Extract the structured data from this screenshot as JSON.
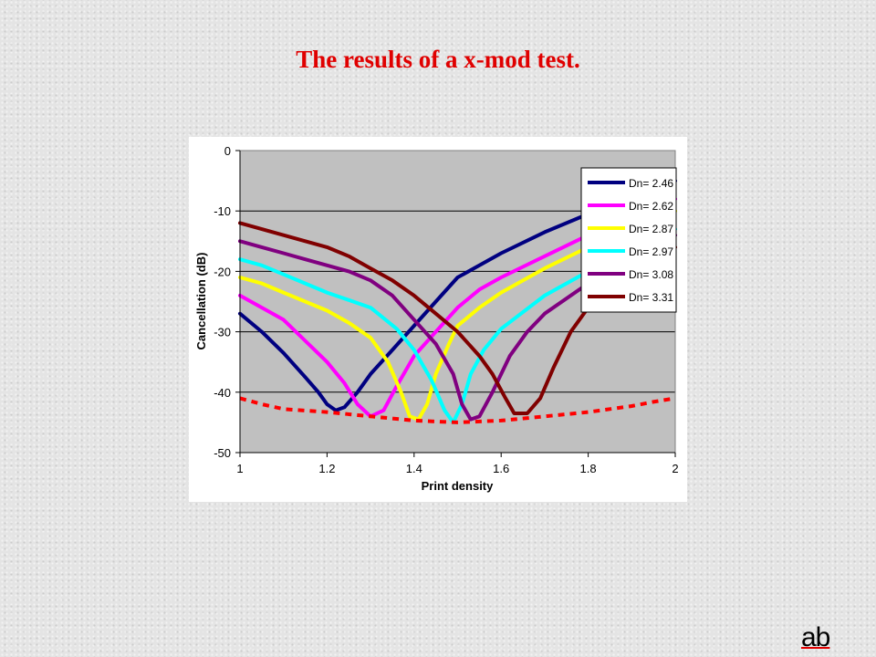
{
  "slide": {
    "title": "The results of a x-mod test.",
    "logo_text": "ab"
  },
  "chart_data": {
    "type": "line",
    "title": "",
    "xlabel": "Print density",
    "ylabel": "Cancellation (dB)",
    "xlim": [
      1,
      2
    ],
    "ylim": [
      -50,
      0
    ],
    "x_ticks": [
      1,
      1.2,
      1.4,
      1.6,
      1.8,
      2
    ],
    "x_tick_labels": [
      "1",
      "1.2",
      "1.4",
      "1.6",
      "1.8",
      "2"
    ],
    "y_ticks": [
      0,
      -10,
      -20,
      -30,
      -40,
      -50
    ],
    "y_tick_labels": [
      "0",
      "-10",
      "-20",
      "-30",
      "-40",
      "-50"
    ],
    "grid": "horizontal",
    "plot_background": "#c0c0c0",
    "legend_position": "top-right",
    "series": [
      {
        "name": "Dn= 2.46",
        "color": "#000080",
        "points": [
          [
            1,
            -27
          ],
          [
            1.05,
            -30
          ],
          [
            1.1,
            -33.5
          ],
          [
            1.15,
            -37.5
          ],
          [
            1.18,
            -40
          ],
          [
            1.2,
            -42
          ],
          [
            1.22,
            -43
          ],
          [
            1.24,
            -42.5
          ],
          [
            1.27,
            -40
          ],
          [
            1.3,
            -37
          ],
          [
            1.35,
            -33
          ],
          [
            1.4,
            -29
          ],
          [
            1.45,
            -25
          ],
          [
            1.5,
            -21
          ],
          [
            1.55,
            -19
          ],
          [
            1.6,
            -17
          ],
          [
            1.7,
            -13.5
          ],
          [
            1.8,
            -10.5
          ],
          [
            1.9,
            -7.5
          ],
          [
            2,
            -5
          ]
        ]
      },
      {
        "name": "Dn= 2.62",
        "color": "#ff00ff",
        "points": [
          [
            1,
            -24
          ],
          [
            1.05,
            -26
          ],
          [
            1.1,
            -28
          ],
          [
            1.15,
            -31.5
          ],
          [
            1.2,
            -35
          ],
          [
            1.24,
            -38.5
          ],
          [
            1.27,
            -42
          ],
          [
            1.3,
            -44
          ],
          [
            1.33,
            -43
          ],
          [
            1.36,
            -39
          ],
          [
            1.4,
            -34
          ],
          [
            1.45,
            -30
          ],
          [
            1.5,
            -26
          ],
          [
            1.55,
            -23
          ],
          [
            1.6,
            -21
          ],
          [
            1.7,
            -17.5
          ],
          [
            1.8,
            -14
          ],
          [
            1.9,
            -11
          ],
          [
            2,
            -8
          ]
        ]
      },
      {
        "name": "Dn= 2.87",
        "color": "#ffff00",
        "points": [
          [
            1,
            -21
          ],
          [
            1.05,
            -22
          ],
          [
            1.1,
            -23.5
          ],
          [
            1.15,
            -25
          ],
          [
            1.2,
            -26.5
          ],
          [
            1.25,
            -28.5
          ],
          [
            1.3,
            -31
          ],
          [
            1.34,
            -35
          ],
          [
            1.37,
            -40
          ],
          [
            1.39,
            -44
          ],
          [
            1.41,
            -44.5
          ],
          [
            1.43,
            -42
          ],
          [
            1.45,
            -37
          ],
          [
            1.48,
            -32
          ],
          [
            1.5,
            -29
          ],
          [
            1.55,
            -26
          ],
          [
            1.6,
            -23.5
          ],
          [
            1.7,
            -19.5
          ],
          [
            1.8,
            -16
          ],
          [
            1.9,
            -13
          ],
          [
            2,
            -10
          ]
        ]
      },
      {
        "name": "Dn= 2.97",
        "color": "#00ffff",
        "points": [
          [
            1,
            -18
          ],
          [
            1.05,
            -19
          ],
          [
            1.1,
            -20.5
          ],
          [
            1.15,
            -22
          ],
          [
            1.2,
            -23.5
          ],
          [
            1.3,
            -26
          ],
          [
            1.36,
            -29.5
          ],
          [
            1.4,
            -33
          ],
          [
            1.44,
            -38
          ],
          [
            1.47,
            -43
          ],
          [
            1.49,
            -45
          ],
          [
            1.51,
            -42
          ],
          [
            1.53,
            -37
          ],
          [
            1.56,
            -33
          ],
          [
            1.6,
            -29.5
          ],
          [
            1.7,
            -24
          ],
          [
            1.8,
            -20
          ],
          [
            1.9,
            -16.5
          ],
          [
            2,
            -13
          ]
        ]
      },
      {
        "name": "Dn= 3.08",
        "color": "#800080",
        "points": [
          [
            1,
            -15
          ],
          [
            1.05,
            -16
          ],
          [
            1.1,
            -17
          ],
          [
            1.15,
            -18
          ],
          [
            1.2,
            -19
          ],
          [
            1.25,
            -20
          ],
          [
            1.3,
            -21.5
          ],
          [
            1.35,
            -24
          ],
          [
            1.4,
            -28
          ],
          [
            1.45,
            -32
          ],
          [
            1.49,
            -37
          ],
          [
            1.51,
            -42
          ],
          [
            1.53,
            -44.5
          ],
          [
            1.55,
            -44
          ],
          [
            1.58,
            -40
          ],
          [
            1.62,
            -34
          ],
          [
            1.66,
            -30
          ],
          [
            1.7,
            -27
          ],
          [
            1.8,
            -22
          ],
          [
            1.9,
            -18
          ],
          [
            2,
            -14
          ]
        ]
      },
      {
        "name": "Dn= 3.31",
        "color": "#800000",
        "points": [
          [
            1,
            -12
          ],
          [
            1.05,
            -13
          ],
          [
            1.1,
            -14
          ],
          [
            1.15,
            -15
          ],
          [
            1.2,
            -16
          ],
          [
            1.25,
            -17.5
          ],
          [
            1.3,
            -19.5
          ],
          [
            1.35,
            -21.5
          ],
          [
            1.4,
            -24
          ],
          [
            1.45,
            -27
          ],
          [
            1.5,
            -30
          ],
          [
            1.55,
            -34
          ],
          [
            1.58,
            -37
          ],
          [
            1.61,
            -41
          ],
          [
            1.63,
            -43.5
          ],
          [
            1.66,
            -43.5
          ],
          [
            1.69,
            -41
          ],
          [
            1.72,
            -36
          ],
          [
            1.76,
            -30
          ],
          [
            1.8,
            -26
          ],
          [
            1.9,
            -20
          ],
          [
            2,
            -16
          ]
        ]
      },
      {
        "name": "",
        "color": "#ff0000",
        "dashed": true,
        "points": [
          [
            1,
            -41
          ],
          [
            1.05,
            -42
          ],
          [
            1.1,
            -42.8
          ],
          [
            1.2,
            -43.3
          ],
          [
            1.3,
            -44
          ],
          [
            1.4,
            -44.7
          ],
          [
            1.5,
            -45
          ],
          [
            1.6,
            -44.7
          ],
          [
            1.7,
            -44
          ],
          [
            1.8,
            -43.3
          ],
          [
            1.9,
            -42.3
          ],
          [
            1.95,
            -41.6
          ],
          [
            2,
            -41
          ]
        ]
      }
    ]
  }
}
